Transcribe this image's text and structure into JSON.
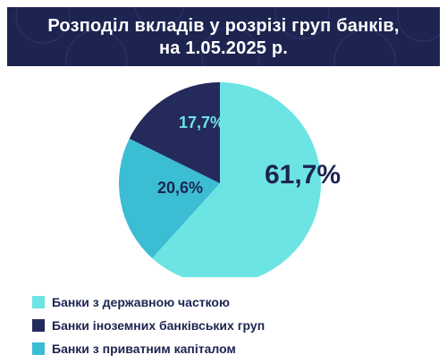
{
  "chart_data": {
    "type": "pie",
    "title": [
      "Розподіл вкладів у розрізі груп банків,",
      "на 1.05.2025 р."
    ],
    "slices": [
      {
        "label": "Банки з державною часткою",
        "value": 61.7,
        "value_label": "61,7%",
        "color": "#6de4e4",
        "text_color": "#1d2450"
      },
      {
        "label": "Банки з приватним капіталом",
        "value": 20.6,
        "value_label": "20,6%",
        "color": "#3bbdd3",
        "text_color": "#1d2450"
      },
      {
        "label": "Банки іноземних банківських груп",
        "value": 17.7,
        "value_label": "17,7%",
        "color": "#252a5c",
        "text_color": "#6de4e4"
      }
    ],
    "legend_order": [
      0,
      2,
      1
    ],
    "legend_position": "bottom-left",
    "start_angle_deg": 0,
    "direction": "clockwise"
  }
}
